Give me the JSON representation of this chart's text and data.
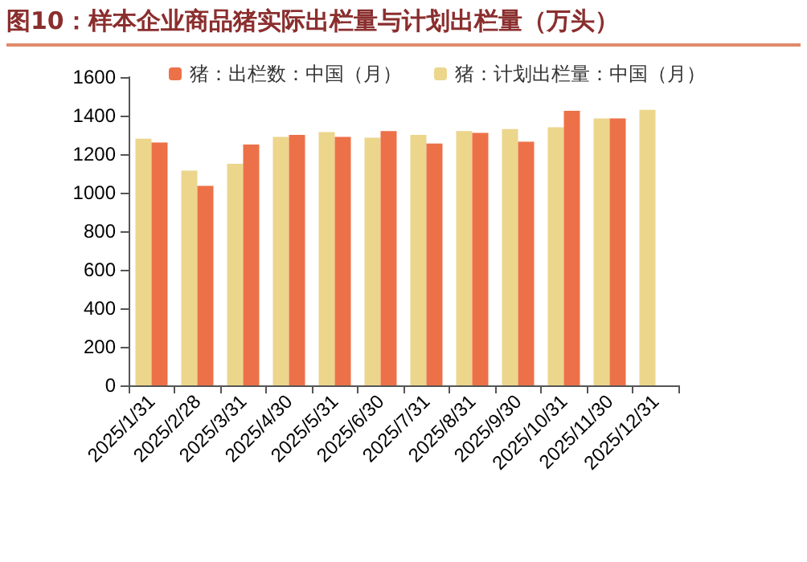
{
  "chart_data": {
    "type": "bar",
    "title": "图10：样本企业商品猪实际出栏量与计划出栏量（万头）",
    "categories": [
      "2025/1/31",
      "2025/2/28",
      "2025/3/31",
      "2025/4/30",
      "2025/5/31",
      "2025/6/30",
      "2025/7/31",
      "2025/8/31",
      "2025/9/30",
      "2025/10/31",
      "2025/11/30",
      "2025/12/31"
    ],
    "series": [
      {
        "name": "猪：计划出栏量：中国（月）",
        "color": "#ecd68c",
        "values": [
          1280,
          1115,
          1150,
          1290,
          1315,
          1285,
          1300,
          1320,
          1330,
          1340,
          1385,
          1430
        ]
      },
      {
        "name": "猪：出栏数：中国（月）",
        "color": "#ed7148",
        "values": [
          1260,
          1035,
          1250,
          1300,
          1290,
          1320,
          1255,
          1310,
          1265,
          1425,
          1385,
          null
        ]
      }
    ],
    "ylim": [
      0,
      1600
    ],
    "yticks": [
      0,
      200,
      400,
      600,
      800,
      1000,
      1200,
      1400,
      1600
    ],
    "grid": false,
    "legend": "top"
  }
}
